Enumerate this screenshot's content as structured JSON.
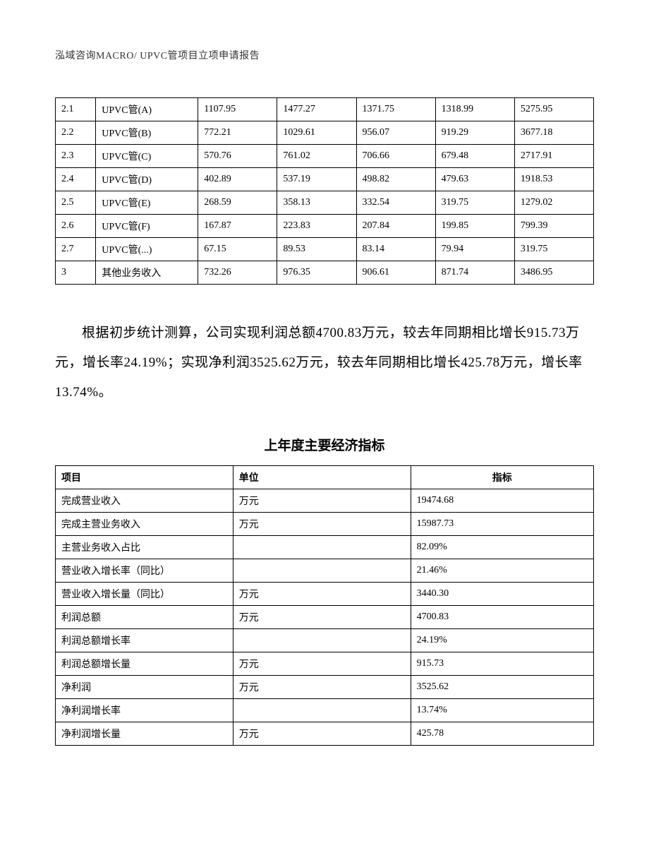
{
  "header": "泓域咨询MACRO/   UPVC管项目立项申请报告",
  "table1": {
    "col_widths": [
      "7.5%",
      "19%",
      "14.7%",
      "14.7%",
      "14.7%",
      "14.7%",
      "14.7%"
    ],
    "border_color": "#000000",
    "cell_fontsize": 14,
    "rows": [
      [
        "2.1",
        "UPVC管(A)",
        "1107.95",
        "1477.27",
        "1371.75",
        "1318.99",
        "5275.95"
      ],
      [
        "2.2",
        "UPVC管(B)",
        "772.21",
        "1029.61",
        "956.07",
        "919.29",
        "3677.18"
      ],
      [
        "2.3",
        "UPVC管(C)",
        "570.76",
        "761.02",
        "706.66",
        "679.48",
        "2717.91"
      ],
      [
        "2.4",
        "UPVC管(D)",
        "402.89",
        "537.19",
        "498.82",
        "479.63",
        "1918.53"
      ],
      [
        "2.5",
        "UPVC管(E)",
        "268.59",
        "358.13",
        "332.54",
        "319.75",
        "1279.02"
      ],
      [
        "2.6",
        "UPVC管(F)",
        "167.87",
        "223.83",
        "207.84",
        "199.85",
        "799.39"
      ],
      [
        "2.7",
        "UPVC管(...)",
        "67.15",
        "89.53",
        "83.14",
        "79.94",
        "319.75"
      ],
      [
        "3",
        "其他业务收入",
        "732.26",
        "976.35",
        "906.61",
        "871.74",
        "3486.95"
      ]
    ]
  },
  "paragraph": "根据初步统计测算，公司实现利润总额4700.83万元，较去年同期相比增长915.73万元，增长率24.19%；实现净利润3525.62万元，较去年同期相比增长425.78万元，增长率13.74%。",
  "section_title": "上年度主要经济指标",
  "table2": {
    "border_color": "#000000",
    "cell_fontsize": 14,
    "col_widths": [
      "33%",
      "33%",
      "34%"
    ],
    "headers": [
      "项目",
      "单位",
      "指标"
    ],
    "rows": [
      [
        "完成营业收入",
        "万元",
        "19474.68"
      ],
      [
        "完成主营业务收入",
        "万元",
        "15987.73"
      ],
      [
        "主营业务收入占比",
        "",
        "82.09%"
      ],
      [
        "营业收入增长率（同比）",
        "",
        "21.46%"
      ],
      [
        "营业收入增长量（同比）",
        "万元",
        "3440.30"
      ],
      [
        "利润总额",
        "万元",
        "4700.83"
      ],
      [
        "利润总额增长率",
        "",
        "24.19%"
      ],
      [
        "利润总额增长量",
        "万元",
        "915.73"
      ],
      [
        "净利润",
        "万元",
        "3525.62"
      ],
      [
        "净利润增长率",
        "",
        "13.74%"
      ],
      [
        "净利润增长量",
        "万元",
        "425.78"
      ]
    ]
  },
  "colors": {
    "background": "#ffffff",
    "text": "#000000",
    "border": "#000000"
  },
  "typography": {
    "body_font": "SimSun",
    "header_fontsize": 14,
    "paragraph_fontsize": 19,
    "section_title_fontsize": 19,
    "table_fontsize": 14
  }
}
